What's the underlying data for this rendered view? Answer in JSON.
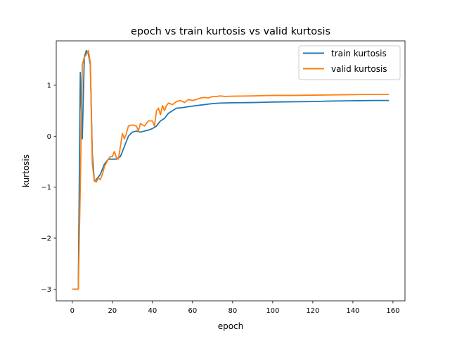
{
  "chart_data": {
    "type": "line",
    "title": "epoch vs train kurtosis vs valid kurtosis",
    "xlabel": "epoch",
    "ylabel": "kurtosis",
    "xlim": [
      -8,
      166
    ],
    "ylim": [
      -3.23,
      1.87
    ],
    "xticks": [
      0,
      20,
      40,
      60,
      80,
      100,
      120,
      140,
      160
    ],
    "yticks": [
      -3,
      -2,
      -1,
      0,
      1
    ],
    "ytick_labels": [
      "−3",
      "−2",
      "−1",
      "0",
      "1"
    ],
    "grid": false,
    "legend_position": "top-right",
    "series": [
      {
        "name": "train kurtosis",
        "color": "#1f77b4",
        "points": [
          [
            0,
            -3.0
          ],
          [
            1,
            -3.0
          ],
          [
            2,
            -3.0
          ],
          [
            3,
            -3.0
          ],
          [
            4,
            1.25
          ],
          [
            5,
            -0.05
          ],
          [
            6,
            1.55
          ],
          [
            7,
            1.68
          ],
          [
            8,
            1.62
          ],
          [
            9,
            1.4
          ],
          [
            10,
            -0.35
          ],
          [
            11,
            -0.88
          ],
          [
            12,
            -0.85
          ],
          [
            13,
            -0.8
          ],
          [
            14,
            -0.75
          ],
          [
            16,
            -0.55
          ],
          [
            18,
            -0.45
          ],
          [
            20,
            -0.45
          ],
          [
            22,
            -0.45
          ],
          [
            24,
            -0.4
          ],
          [
            26,
            -0.2
          ],
          [
            28,
            0.0
          ],
          [
            30,
            0.08
          ],
          [
            32,
            0.1
          ],
          [
            34,
            0.08
          ],
          [
            36,
            0.1
          ],
          [
            38,
            0.12
          ],
          [
            40,
            0.15
          ],
          [
            42,
            0.2
          ],
          [
            44,
            0.3
          ],
          [
            46,
            0.35
          ],
          [
            48,
            0.45
          ],
          [
            50,
            0.5
          ],
          [
            52,
            0.55
          ],
          [
            55,
            0.56
          ],
          [
            58,
            0.58
          ],
          [
            62,
            0.6
          ],
          [
            66,
            0.62
          ],
          [
            70,
            0.64
          ],
          [
            74,
            0.65
          ],
          [
            80,
            0.655
          ],
          [
            90,
            0.66
          ],
          [
            100,
            0.67
          ],
          [
            110,
            0.675
          ],
          [
            120,
            0.68
          ],
          [
            130,
            0.69
          ],
          [
            140,
            0.695
          ],
          [
            150,
            0.7
          ],
          [
            158,
            0.7
          ]
        ]
      },
      {
        "name": "valid kurtosis",
        "color": "#ff7f0e",
        "points": [
          [
            0,
            -3.0
          ],
          [
            1,
            -3.0
          ],
          [
            2,
            -3.0
          ],
          [
            3,
            -3.0
          ],
          [
            4,
            -1.0
          ],
          [
            5,
            1.4
          ],
          [
            6,
            1.55
          ],
          [
            7,
            1.6
          ],
          [
            8,
            1.68
          ],
          [
            9,
            1.45
          ],
          [
            10,
            -0.55
          ],
          [
            11,
            -0.87
          ],
          [
            12,
            -0.9
          ],
          [
            13,
            -0.82
          ],
          [
            14,
            -0.85
          ],
          [
            15,
            -0.75
          ],
          [
            16,
            -0.6
          ],
          [
            18,
            -0.45
          ],
          [
            19,
            -0.4
          ],
          [
            20,
            -0.4
          ],
          [
            21,
            -0.3
          ],
          [
            22,
            -0.42
          ],
          [
            23,
            -0.45
          ],
          [
            24,
            -0.2
          ],
          [
            25,
            0.05
          ],
          [
            26,
            -0.05
          ],
          [
            27,
            0.05
          ],
          [
            28,
            0.2
          ],
          [
            30,
            0.22
          ],
          [
            32,
            0.2
          ],
          [
            33,
            0.1
          ],
          [
            34,
            0.25
          ],
          [
            36,
            0.2
          ],
          [
            38,
            0.3
          ],
          [
            40,
            0.3
          ],
          [
            41,
            0.2
          ],
          [
            42,
            0.5
          ],
          [
            43,
            0.55
          ],
          [
            44,
            0.42
          ],
          [
            45,
            0.6
          ],
          [
            46,
            0.5
          ],
          [
            47,
            0.6
          ],
          [
            48,
            0.65
          ],
          [
            50,
            0.62
          ],
          [
            52,
            0.68
          ],
          [
            54,
            0.7
          ],
          [
            56,
            0.66
          ],
          [
            58,
            0.72
          ],
          [
            60,
            0.7
          ],
          [
            62,
            0.72
          ],
          [
            64,
            0.75
          ],
          [
            66,
            0.76
          ],
          [
            68,
            0.75
          ],
          [
            70,
            0.78
          ],
          [
            72,
            0.78
          ],
          [
            74,
            0.79
          ],
          [
            76,
            0.78
          ],
          [
            80,
            0.785
          ],
          [
            90,
            0.79
          ],
          [
            100,
            0.8
          ],
          [
            110,
            0.8
          ],
          [
            120,
            0.805
          ],
          [
            130,
            0.81
          ],
          [
            140,
            0.815
          ],
          [
            150,
            0.82
          ],
          [
            158,
            0.82
          ]
        ]
      }
    ]
  }
}
